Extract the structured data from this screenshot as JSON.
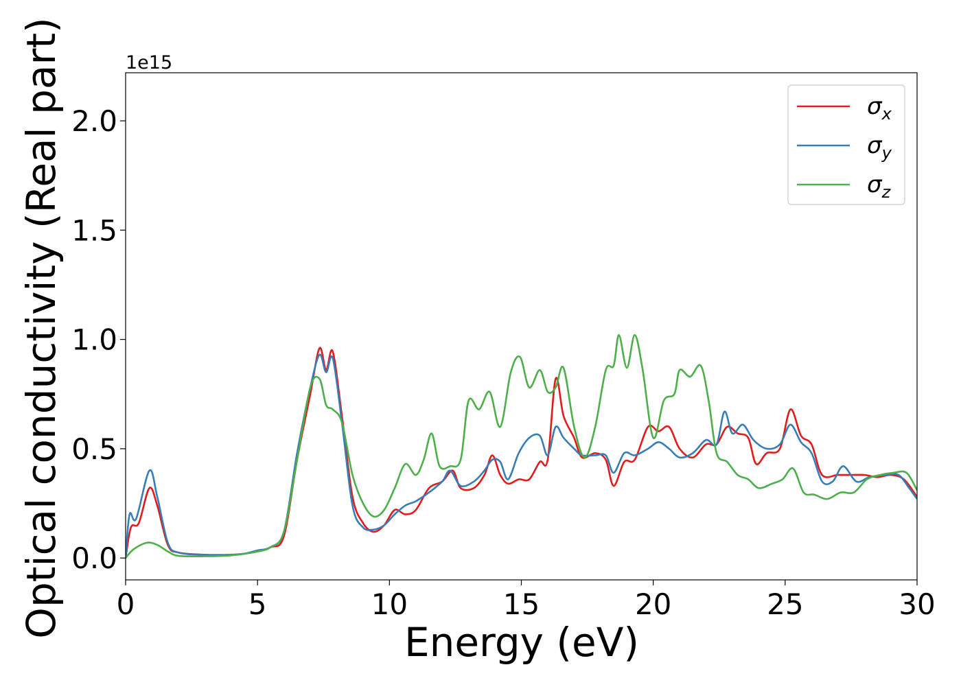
{
  "chart_data": {
    "type": "line",
    "xlabel": "Energy (eV)",
    "ylabel": "Optical conductivity (Real part)",
    "y_offset_label": "1e15",
    "xlim": [
      0,
      30
    ],
    "ylim": [
      -0.1,
      2.22
    ],
    "x_ticks": [
      0,
      5,
      10,
      15,
      20,
      25,
      30
    ],
    "x_tick_labels": [
      "0",
      "5",
      "10",
      "15",
      "20",
      "25",
      "30"
    ],
    "y_ticks": [
      0.0,
      0.5,
      1.0,
      1.5,
      2.0
    ],
    "y_tick_labels": [
      "0.0",
      "0.5",
      "1.0",
      "1.5",
      "2.0"
    ],
    "grid": false,
    "legend_position": "top-right",
    "series": [
      {
        "name": "σ",
        "subscript": "x",
        "color": "#e41a1c",
        "points": [
          [
            0,
            0.0
          ],
          [
            0.2,
            0.14
          ],
          [
            0.5,
            0.16
          ],
          [
            0.9,
            0.32
          ],
          [
            1.2,
            0.24
          ],
          [
            1.6,
            0.06
          ],
          [
            2,
            0.025
          ],
          [
            3,
            0.015
          ],
          [
            4,
            0.015
          ],
          [
            4.5,
            0.02
          ],
          [
            5,
            0.03
          ],
          [
            5.5,
            0.05
          ],
          [
            6,
            0.1
          ],
          [
            6.5,
            0.45
          ],
          [
            7,
            0.75
          ],
          [
            7.35,
            0.96
          ],
          [
            7.6,
            0.86
          ],
          [
            7.85,
            0.945
          ],
          [
            8.2,
            0.65
          ],
          [
            8.6,
            0.28
          ],
          [
            9,
            0.16
          ],
          [
            9.4,
            0.12
          ],
          [
            9.8,
            0.15
          ],
          [
            10.2,
            0.22
          ],
          [
            10.6,
            0.2
          ],
          [
            11,
            0.22
          ],
          [
            11.5,
            0.32
          ],
          [
            12,
            0.35
          ],
          [
            12.4,
            0.4
          ],
          [
            12.7,
            0.32
          ],
          [
            13.2,
            0.32
          ],
          [
            13.6,
            0.38
          ],
          [
            13.9,
            0.47
          ],
          [
            14.2,
            0.38
          ],
          [
            14.5,
            0.34
          ],
          [
            14.9,
            0.36
          ],
          [
            15.3,
            0.36
          ],
          [
            15.7,
            0.44
          ],
          [
            16.0,
            0.45
          ],
          [
            16.3,
            0.82
          ],
          [
            16.6,
            0.65
          ],
          [
            17.0,
            0.55
          ],
          [
            17.3,
            0.46
          ],
          [
            17.8,
            0.48
          ],
          [
            18.2,
            0.45
          ],
          [
            18.5,
            0.33
          ],
          [
            18.9,
            0.44
          ],
          [
            19.3,
            0.45
          ],
          [
            19.8,
            0.6
          ],
          [
            20.2,
            0.58
          ],
          [
            20.6,
            0.6
          ],
          [
            21.0,
            0.5
          ],
          [
            21.5,
            0.46
          ],
          [
            22.0,
            0.52
          ],
          [
            22.4,
            0.52
          ],
          [
            22.8,
            0.6
          ],
          [
            23.2,
            0.57
          ],
          [
            23.6,
            0.55
          ],
          [
            23.9,
            0.43
          ],
          [
            24.3,
            0.48
          ],
          [
            24.8,
            0.5
          ],
          [
            25.2,
            0.68
          ],
          [
            25.6,
            0.56
          ],
          [
            26.0,
            0.52
          ],
          [
            26.4,
            0.38
          ],
          [
            27.0,
            0.38
          ],
          [
            27.5,
            0.38
          ],
          [
            28.0,
            0.38
          ],
          [
            28.5,
            0.37
          ],
          [
            29.0,
            0.38
          ],
          [
            29.5,
            0.36
          ],
          [
            30,
            0.28
          ]
        ]
      },
      {
        "name": "σ",
        "subscript": "y",
        "color": "#377eb8",
        "points": [
          [
            0,
            0.0
          ],
          [
            0.15,
            0.2
          ],
          [
            0.4,
            0.18
          ],
          [
            0.9,
            0.4
          ],
          [
            1.2,
            0.28
          ],
          [
            1.6,
            0.07
          ],
          [
            2,
            0.025
          ],
          [
            3,
            0.015
          ],
          [
            4,
            0.015
          ],
          [
            4.5,
            0.02
          ],
          [
            5,
            0.035
          ],
          [
            5.5,
            0.05
          ],
          [
            6,
            0.12
          ],
          [
            6.5,
            0.48
          ],
          [
            7,
            0.78
          ],
          [
            7.35,
            0.93
          ],
          [
            7.6,
            0.85
          ],
          [
            7.85,
            0.915
          ],
          [
            8.2,
            0.62
          ],
          [
            8.6,
            0.24
          ],
          [
            9,
            0.14
          ],
          [
            9.4,
            0.13
          ],
          [
            9.8,
            0.15
          ],
          [
            10.2,
            0.2
          ],
          [
            10.6,
            0.24
          ],
          [
            11,
            0.26
          ],
          [
            11.5,
            0.3
          ],
          [
            12,
            0.35
          ],
          [
            12.3,
            0.4
          ],
          [
            12.7,
            0.33
          ],
          [
            13.2,
            0.35
          ],
          [
            13.6,
            0.4
          ],
          [
            13.9,
            0.45
          ],
          [
            14.2,
            0.44
          ],
          [
            14.5,
            0.36
          ],
          [
            14.9,
            0.48
          ],
          [
            15.3,
            0.55
          ],
          [
            15.7,
            0.56
          ],
          [
            16.0,
            0.47
          ],
          [
            16.3,
            0.6
          ],
          [
            16.6,
            0.55
          ],
          [
            17.0,
            0.5
          ],
          [
            17.3,
            0.47
          ],
          [
            17.8,
            0.47
          ],
          [
            18.2,
            0.47
          ],
          [
            18.5,
            0.39
          ],
          [
            18.9,
            0.48
          ],
          [
            19.3,
            0.47
          ],
          [
            19.8,
            0.5
          ],
          [
            20.2,
            0.53
          ],
          [
            20.6,
            0.5
          ],
          [
            21.0,
            0.46
          ],
          [
            21.5,
            0.48
          ],
          [
            22.0,
            0.54
          ],
          [
            22.4,
            0.52
          ],
          [
            22.7,
            0.67
          ],
          [
            23.0,
            0.57
          ],
          [
            23.4,
            0.61
          ],
          [
            23.8,
            0.54
          ],
          [
            24.3,
            0.5
          ],
          [
            24.8,
            0.52
          ],
          [
            25.2,
            0.61
          ],
          [
            25.6,
            0.53
          ],
          [
            26.0,
            0.48
          ],
          [
            26.4,
            0.35
          ],
          [
            26.8,
            0.35
          ],
          [
            27.2,
            0.42
          ],
          [
            27.7,
            0.35
          ],
          [
            28.2,
            0.37
          ],
          [
            28.8,
            0.38
          ],
          [
            29.3,
            0.38
          ],
          [
            29.7,
            0.32
          ],
          [
            30,
            0.27
          ]
        ]
      },
      {
        "name": "σ",
        "subscript": "z",
        "color": "#4daf4a",
        "points": [
          [
            0,
            0.0
          ],
          [
            0.3,
            0.04
          ],
          [
            0.8,
            0.07
          ],
          [
            1.2,
            0.06
          ],
          [
            1.6,
            0.03
          ],
          [
            2,
            0.01
          ],
          [
            3,
            0.008
          ],
          [
            4,
            0.012
          ],
          [
            5,
            0.03
          ],
          [
            5.5,
            0.05
          ],
          [
            6,
            0.12
          ],
          [
            6.5,
            0.45
          ],
          [
            7,
            0.78
          ],
          [
            7.35,
            0.82
          ],
          [
            7.6,
            0.7
          ],
          [
            7.85,
            0.68
          ],
          [
            8.2,
            0.62
          ],
          [
            8.6,
            0.38
          ],
          [
            9,
            0.25
          ],
          [
            9.4,
            0.19
          ],
          [
            9.8,
            0.22
          ],
          [
            10.2,
            0.32
          ],
          [
            10.6,
            0.43
          ],
          [
            11,
            0.38
          ],
          [
            11.3,
            0.45
          ],
          [
            11.6,
            0.57
          ],
          [
            11.9,
            0.42
          ],
          [
            12.3,
            0.42
          ],
          [
            12.7,
            0.45
          ],
          [
            13.0,
            0.72
          ],
          [
            13.4,
            0.68
          ],
          [
            13.8,
            0.76
          ],
          [
            14.2,
            0.6
          ],
          [
            14.6,
            0.85
          ],
          [
            14.95,
            0.92
          ],
          [
            15.3,
            0.78
          ],
          [
            15.7,
            0.86
          ],
          [
            16.0,
            0.76
          ],
          [
            16.3,
            0.78
          ],
          [
            16.6,
            0.87
          ],
          [
            17.0,
            0.6
          ],
          [
            17.4,
            0.46
          ],
          [
            17.8,
            0.6
          ],
          [
            18.2,
            0.86
          ],
          [
            18.5,
            0.88
          ],
          [
            18.7,
            1.02
          ],
          [
            19.0,
            0.87
          ],
          [
            19.3,
            1.02
          ],
          [
            19.6,
            0.86
          ],
          [
            20.0,
            0.55
          ],
          [
            20.4,
            0.72
          ],
          [
            20.8,
            0.75
          ],
          [
            21.0,
            0.86
          ],
          [
            21.4,
            0.83
          ],
          [
            21.8,
            0.88
          ],
          [
            22.1,
            0.72
          ],
          [
            22.4,
            0.48
          ],
          [
            22.8,
            0.44
          ],
          [
            23.2,
            0.38
          ],
          [
            23.6,
            0.36
          ],
          [
            24.0,
            0.32
          ],
          [
            24.5,
            0.34
          ],
          [
            24.9,
            0.36
          ],
          [
            25.3,
            0.41
          ],
          [
            25.7,
            0.3
          ],
          [
            26.1,
            0.29
          ],
          [
            26.6,
            0.27
          ],
          [
            27.1,
            0.3
          ],
          [
            27.6,
            0.3
          ],
          [
            28.1,
            0.36
          ],
          [
            28.6,
            0.38
          ],
          [
            29.1,
            0.39
          ],
          [
            29.6,
            0.39
          ],
          [
            30,
            0.31
          ]
        ]
      }
    ]
  }
}
